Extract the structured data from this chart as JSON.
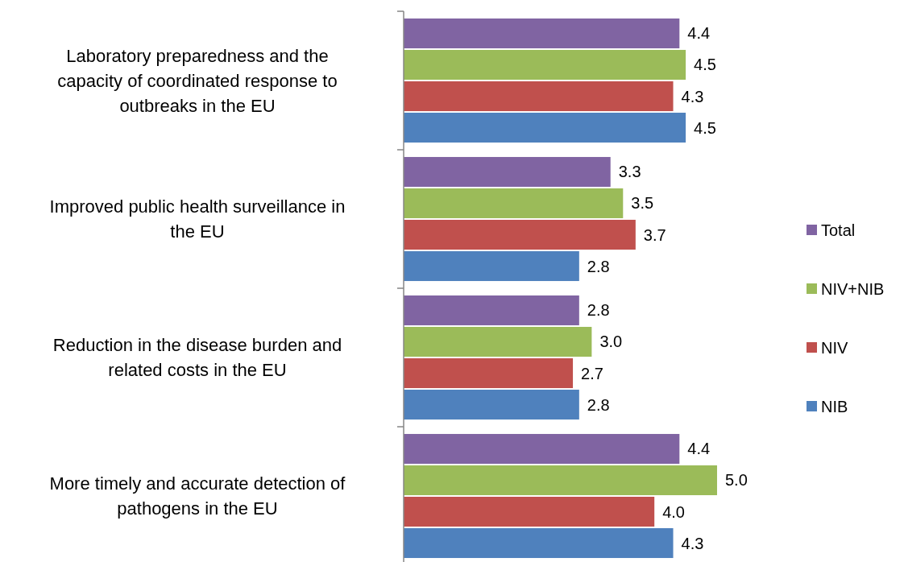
{
  "chart_data": {
    "type": "bar",
    "orientation": "horizontal",
    "categories": [
      "Laboratory preparedness and the capacity of coordinated response to outbreaks in the EU",
      "Improved public health surveillance in the EU",
      "Reduction in the disease burden and related costs in the EU",
      "More timely and accurate detection of pathogens in the EU"
    ],
    "series": [
      {
        "name": "Total",
        "color": "#8064a2",
        "values": [
          4.4,
          3.3,
          2.8,
          4.4
        ],
        "value_labels": [
          "4.4",
          "3.3",
          "2.8",
          "4.4"
        ]
      },
      {
        "name": "NIV+NIB",
        "color": "#9bbb59",
        "values": [
          4.5,
          3.5,
          3.0,
          5.0
        ],
        "value_labels": [
          "4.5",
          "3.5",
          "3.0",
          "5.0"
        ]
      },
      {
        "name": "NIV",
        "color": "#c0504d",
        "values": [
          4.3,
          3.7,
          2.7,
          4.0
        ],
        "value_labels": [
          "4.3",
          "3.7",
          "2.7",
          "4.0"
        ]
      },
      {
        "name": "NIB",
        "color": "#4f81bd",
        "values": [
          4.5,
          2.8,
          2.8,
          4.3
        ],
        "value_labels": [
          "4.5",
          "2.8",
          "2.8",
          "4.3"
        ]
      }
    ],
    "legend": "right",
    "grid": false
  }
}
